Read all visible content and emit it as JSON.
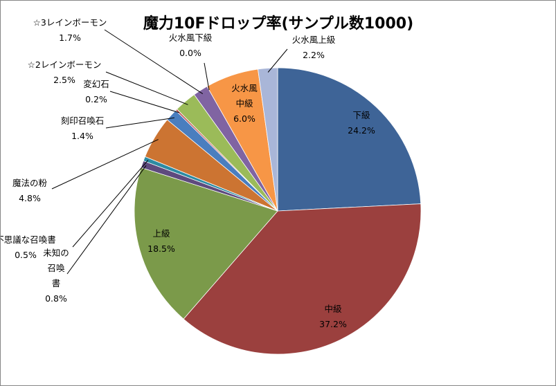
{
  "chart_data": {
    "type": "pie",
    "title": "魔力10Fドロップ率(サンプル数1000)",
    "slices": [
      {
        "name": "下級",
        "lines": [
          "下級"
        ],
        "value": 24.2,
        "label": "24.2%",
        "color": "#3E6497"
      },
      {
        "name": "中級",
        "lines": [
          "中級"
        ],
        "value": 37.2,
        "label": "37.2%",
        "color": "#9B403E"
      },
      {
        "name": "上級",
        "lines": [
          "上級"
        ],
        "value": 18.5,
        "label": "18.5%",
        "color": "#7B9A4A"
      },
      {
        "name": "未知の召喚書",
        "lines": [
          "未知の",
          "召喚",
          "書"
        ],
        "value": 0.8,
        "label": "0.8%",
        "color": "#5E4A7E"
      },
      {
        "name": "不思議な召喚書",
        "lines": [
          "不思議な召喚書"
        ],
        "value": 0.5,
        "label": "0.5%",
        "color": "#2D8BA3"
      },
      {
        "name": "魔法の粉",
        "lines": [
          "魔法の粉"
        ],
        "value": 4.8,
        "label": "4.8%",
        "color": "#CC7432"
      },
      {
        "name": "刻印召喚石",
        "lines": [
          "刻印召喚石"
        ],
        "value": 1.4,
        "label": "1.4%",
        "color": "#4A7EBF"
      },
      {
        "name": "変幻石",
        "lines": [
          "変幻石"
        ],
        "value": 0.2,
        "label": "0.2%",
        "color": "#BF4D4A"
      },
      {
        "name": "☆2レインボーモン",
        "lines": [
          "☆2レインボーモン"
        ],
        "value": 2.5,
        "label": "2.5%",
        "color": "#9BBB59"
      },
      {
        "name": "☆3レインボーモン",
        "lines": [
          "☆3レインボーモン"
        ],
        "value": 1.7,
        "label": "1.7%",
        "color": "#8064A2"
      },
      {
        "name": "火水風下級",
        "lines": [
          "火水風下級"
        ],
        "value": 0.0,
        "label": "0.0%",
        "color": "#4BACC6"
      },
      {
        "name": "火水風中級",
        "lines": [
          "火水風",
          "中級"
        ],
        "value": 6.0,
        "label": "6.0%",
        "color": "#F79646"
      },
      {
        "name": "火水風上級",
        "lines": [
          "火水風上級"
        ],
        "value": 2.2,
        "label": "2.2%",
        "color": "#A9B6D8"
      }
    ]
  }
}
